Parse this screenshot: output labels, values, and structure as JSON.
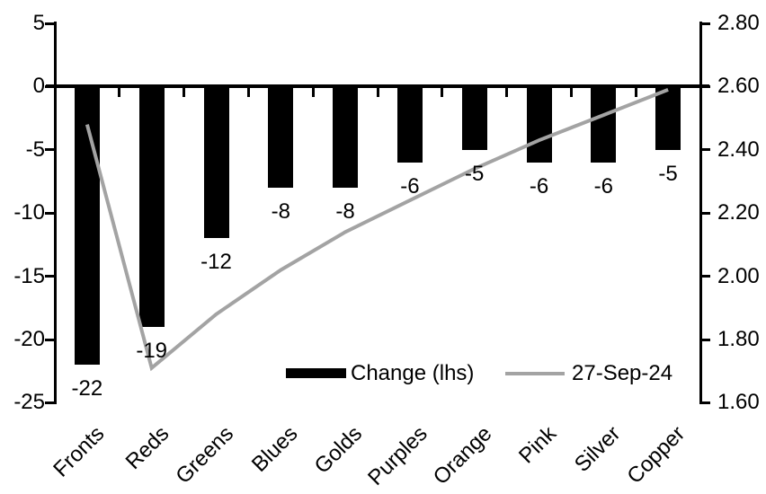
{
  "chart_data": {
    "type": "bar",
    "subtype": "combo-bar-line-dual-axis",
    "categories": [
      "Fronts",
      "Reds",
      "Greens",
      "Blues",
      "Golds",
      "Purples",
      "Orange",
      "Pink",
      "Silver",
      "Copper"
    ],
    "series": [
      {
        "name": "Change (lhs)",
        "type": "bar",
        "axis": "left",
        "color": "#000000",
        "values": [
          -22,
          -19,
          -12,
          -8,
          -8,
          -6,
          -5,
          -6,
          -6,
          -5
        ],
        "data_labels": [
          "-22",
          "-19",
          "-12",
          "-8",
          "-8",
          "-6",
          "-5",
          "-6",
          "-6",
          "-5"
        ]
      },
      {
        "name": "27-Sep-24",
        "type": "line",
        "axis": "right",
        "color": "#a3a3a3",
        "values": [
          2.48,
          1.71,
          1.88,
          2.02,
          2.14,
          2.24,
          2.34,
          2.43,
          2.51,
          2.59
        ]
      }
    ],
    "left_axis": {
      "min": -25,
      "max": 5,
      "tick_labels": [
        "5",
        "0",
        "-5",
        "-10",
        "-15",
        "-20",
        "-25"
      ]
    },
    "right_axis": {
      "min": 1.6,
      "max": 2.8,
      "tick_labels": [
        "2.80",
        "2.60",
        "2.40",
        "2.20",
        "2.00",
        "1.80",
        "1.60"
      ]
    },
    "title": "",
    "xlabel": "",
    "ylabel": "",
    "grid": false,
    "legend_position": "bottom-inside",
    "category_label_rotation_deg": 45
  }
}
